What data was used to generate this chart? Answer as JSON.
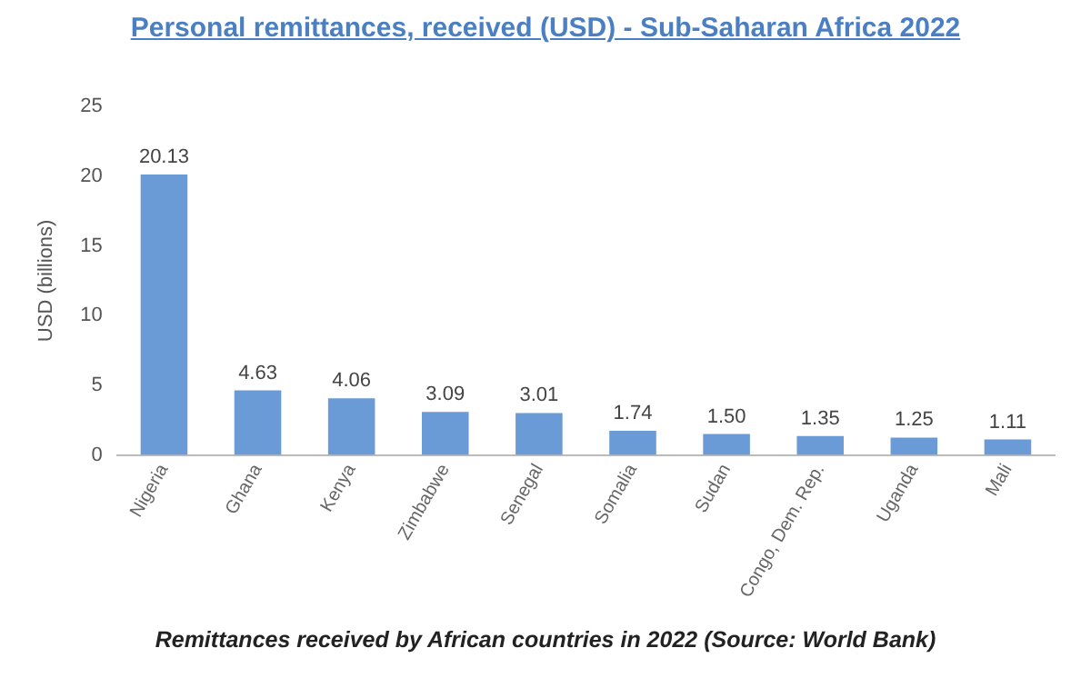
{
  "chart_data": {
    "type": "bar",
    "title": "Personal remittances, received (USD) - Sub-Saharan Africa 2022",
    "ylabel": "USD (billions)",
    "categories": [
      "Nigeria",
      "Ghana",
      "Kenya",
      "Zimbabwe",
      "Senegal",
      "Somalia",
      "Sudan",
      "Congo, Dem. Rep.",
      "Uganda",
      "Mali"
    ],
    "values": [
      20.13,
      4.63,
      4.06,
      3.09,
      3.01,
      1.74,
      1.5,
      1.35,
      1.25,
      1.11
    ],
    "value_labels": [
      "20.13",
      "4.63",
      "4.06",
      "3.09",
      "3.01",
      "1.74",
      "1.50",
      "1.35",
      "1.25",
      "1.11"
    ],
    "color": "#6b9bd6",
    "ylim": [
      0,
      25
    ],
    "yticks": [
      0,
      5,
      10,
      15,
      20,
      25
    ],
    "grid": false,
    "legend": false,
    "annotations": [
      "Remittances received by African countries in 2022 (Source: World Bank)"
    ]
  }
}
